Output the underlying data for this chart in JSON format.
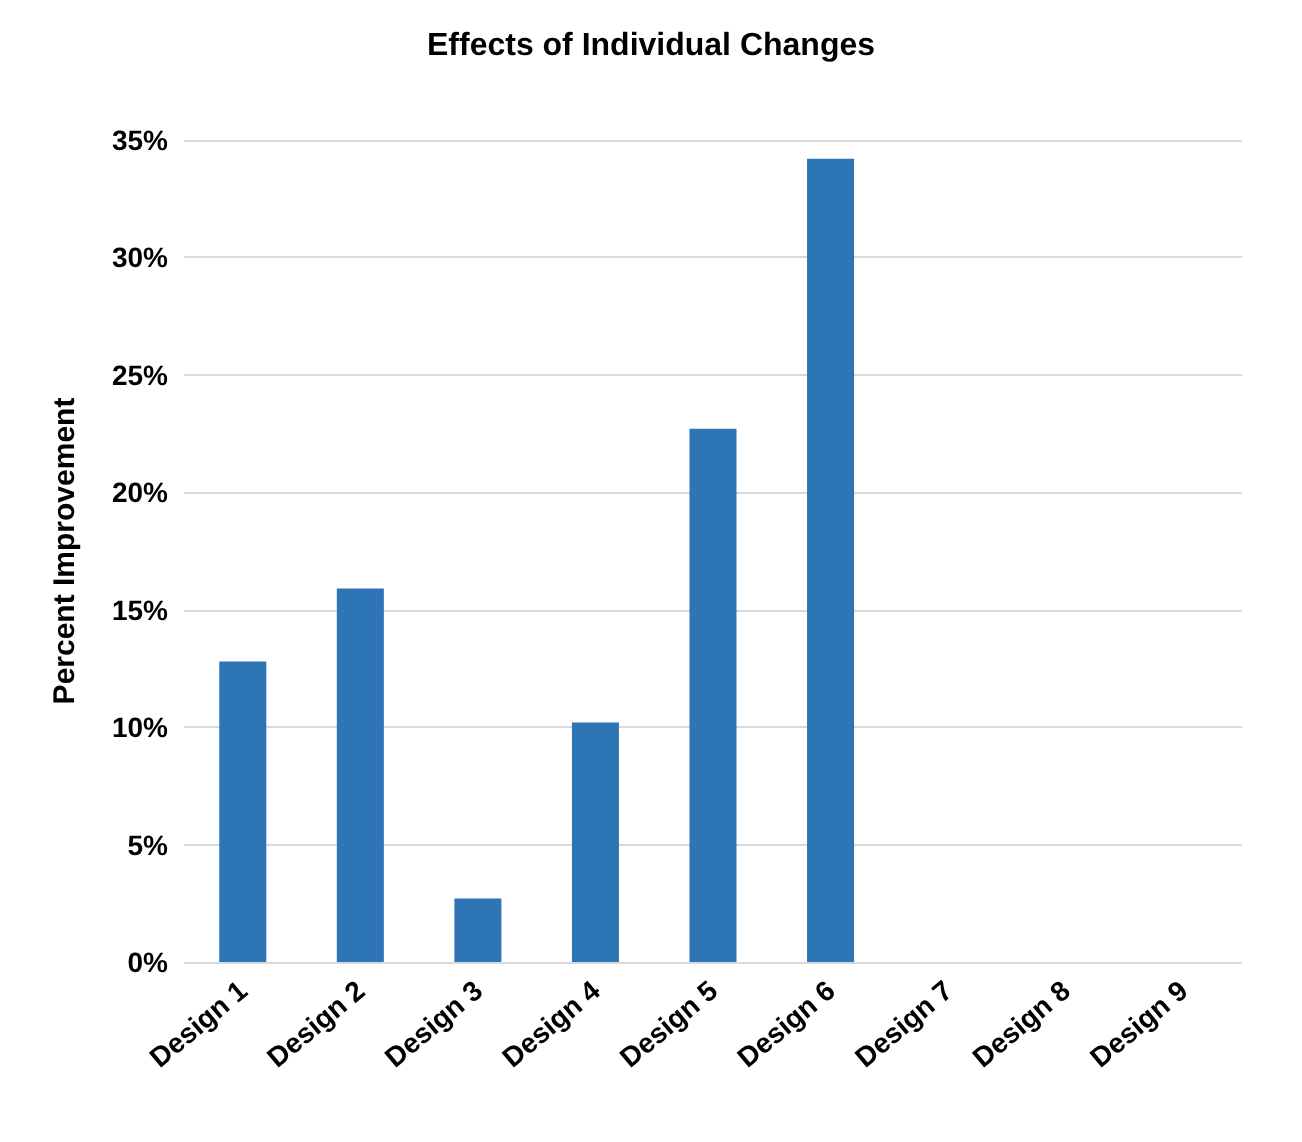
{
  "chart_data": {
    "type": "bar",
    "title": "Effects of Individual Changes",
    "ylabel": "Percent Improvement",
    "categories": [
      "Design 1",
      "Design 2",
      "Design 3",
      "Design 4",
      "Design 5",
      "Design 6",
      "Design 7",
      "Design 8",
      "Design 9"
    ],
    "values": [
      12.8,
      15.9,
      2.7,
      10.2,
      22.7,
      34.2,
      0,
      0,
      0
    ],
    "color": "#2e75b6",
    "ylim": [
      0,
      35
    ],
    "yticks": [
      {
        "value": 0,
        "label": "0%"
      },
      {
        "value": 5,
        "label": "5%"
      },
      {
        "value": 10,
        "label": "10%"
      },
      {
        "value": 15,
        "label": "15%"
      },
      {
        "value": 20,
        "label": "20%"
      },
      {
        "value": 25,
        "label": "25%"
      },
      {
        "value": 30,
        "label": "30%"
      },
      {
        "value": 35,
        "label": "35%"
      }
    ],
    "grid": "y"
  }
}
